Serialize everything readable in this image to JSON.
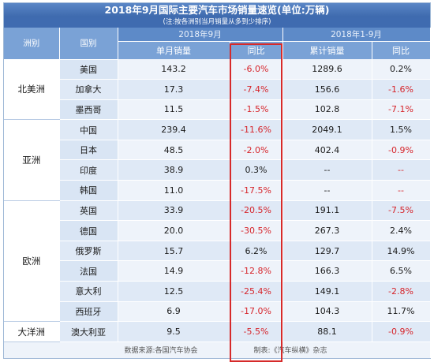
{
  "title": "2018年9月国际主要汽车市场销量速览(单位:万辆)",
  "note": "(注:按各洲别当月销量从多到少排序)",
  "headers": {
    "continent": "洲别",
    "country": "国别",
    "period_month": "2018年9月",
    "period_ytd": "2018年1-9月",
    "month_sales": "单月销量",
    "month_yoy": "同比",
    "cum_sales": "累计销量",
    "cum_yoy": "同比"
  },
  "regions": [
    {
      "name": "北美洲",
      "rows": [
        {
          "country": "美国",
          "sales": "143.2",
          "yoy": "-6.0%",
          "cum": "1289.6",
          "cum_yoy": "0.2%"
        },
        {
          "country": "加拿大",
          "sales": "17.3",
          "yoy": "-7.4%",
          "cum": "156.6",
          "cum_yoy": "-1.6%"
        },
        {
          "country": "墨西哥",
          "sales": "11.5",
          "yoy": "-1.5%",
          "cum": "102.8",
          "cum_yoy": "-7.1%"
        }
      ]
    },
    {
      "name": "亚洲",
      "rows": [
        {
          "country": "中国",
          "sales": "239.4",
          "yoy": "-11.6%",
          "cum": "2049.1",
          "cum_yoy": "1.5%"
        },
        {
          "country": "日本",
          "sales": "48.5",
          "yoy": "-2.0%",
          "cum": "402.4",
          "cum_yoy": "-0.9%"
        },
        {
          "country": "印度",
          "sales": "38.9",
          "yoy": "0.3%",
          "cum": "--",
          "cum_yoy": "--"
        },
        {
          "country": "韩国",
          "sales": "11.0",
          "yoy": "-17.5%",
          "cum": "--",
          "cum_yoy": "--"
        }
      ]
    },
    {
      "name": "欧洲",
      "rows": [
        {
          "country": "英国",
          "sales": "33.9",
          "yoy": "-20.5%",
          "cum": "191.1",
          "cum_yoy": "-7.5%"
        },
        {
          "country": "德国",
          "sales": "20.0",
          "yoy": "-30.5%",
          "cum": "267.3",
          "cum_yoy": "2.4%"
        },
        {
          "country": "俄罗斯",
          "sales": "15.7",
          "yoy": "6.2%",
          "cum": "129.7",
          "cum_yoy": "14.9%"
        },
        {
          "country": "法国",
          "sales": "14.9",
          "yoy": "-12.8%",
          "cum": "166.3",
          "cum_yoy": "6.5%"
        },
        {
          "country": "意大利",
          "sales": "12.5",
          "yoy": "-25.4%",
          "cum": "149.1",
          "cum_yoy": "-2.8%"
        },
        {
          "country": "西班牙",
          "sales": "6.9",
          "yoy": "-17.0%",
          "cum": "104.3",
          "cum_yoy": "11.7%"
        }
      ]
    },
    {
      "name": "大洋洲",
      "rows": [
        {
          "country": "澳大利亚",
          "sales": "9.5",
          "yoy": "-5.5%",
          "cum": "88.1",
          "cum_yoy": "-0.9%"
        }
      ]
    }
  ],
  "footer": {
    "source": "数据来源:各国汽车协会",
    "maker": "制表:《汽车纵横》杂志"
  },
  "colors": {
    "negative": "#d6252b",
    "highlight_border": "#d62a2a",
    "header": "#5d8ac8"
  }
}
